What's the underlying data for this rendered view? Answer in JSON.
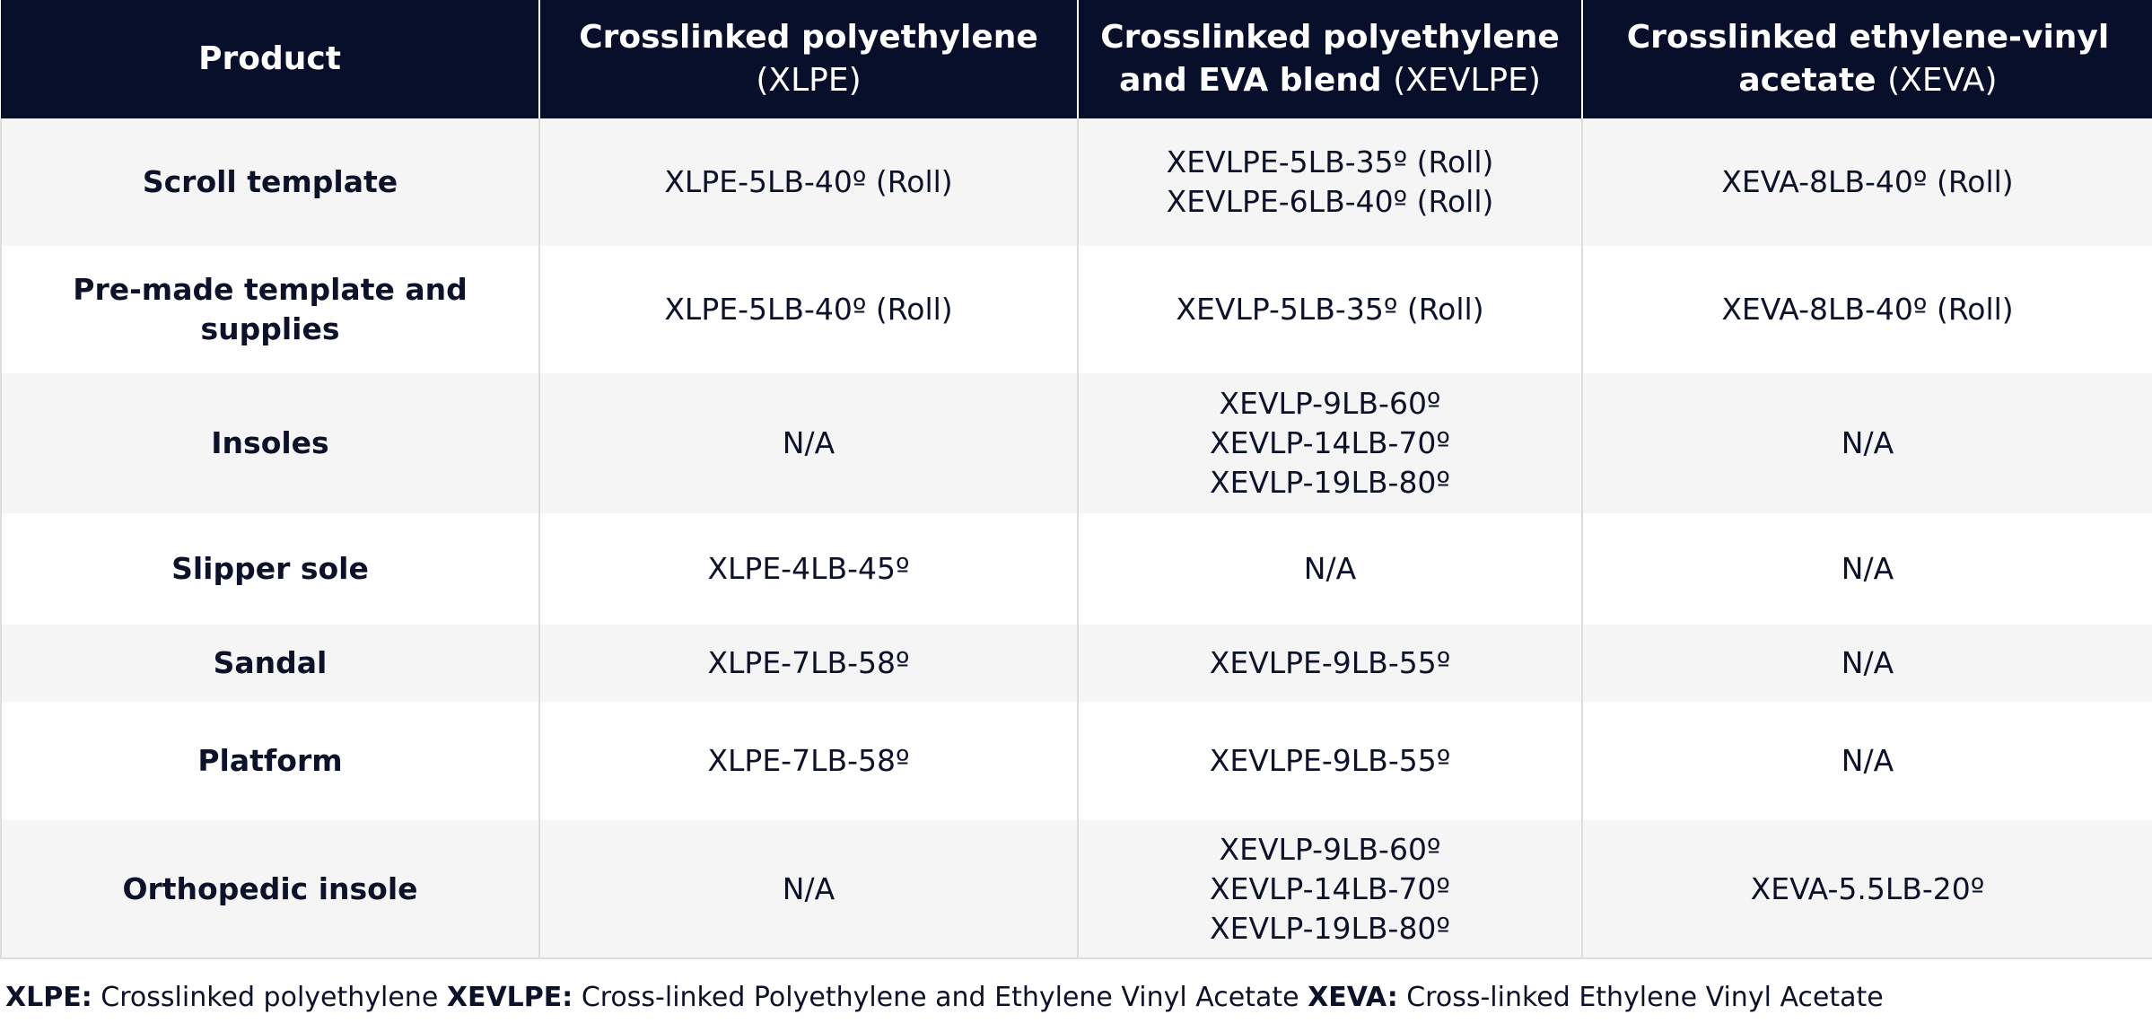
{
  "table": {
    "headers": [
      {
        "bold": "Product",
        "abbr": ""
      },
      {
        "bold": "Crosslinked polyethylene",
        "abbr": "(XLPE)"
      },
      {
        "bold": "Crosslinked polyethylene and EVA blend",
        "abbr": "(XEVLPE)"
      },
      {
        "bold": "Crosslinked ethylene-vinyl acetate",
        "abbr": "(XEVA)"
      }
    ],
    "rows": [
      {
        "product": "Scroll template",
        "xlpe": [
          "XLPE-5LB-40º (Roll)"
        ],
        "xevlpe": [
          "XEVLPE-5LB-35º (Roll)",
          "XEVLPE-6LB-40º (Roll)"
        ],
        "xeva": [
          "XEVA-8LB-40º (Roll)"
        ]
      },
      {
        "product": "Pre-made template and supplies",
        "xlpe": [
          "XLPE-5LB-40º (Roll)"
        ],
        "xevlpe": [
          "XEVLP-5LB-35º (Roll)"
        ],
        "xeva": [
          "XEVA-8LB-40º (Roll)"
        ]
      },
      {
        "product": "Insoles",
        "xlpe": [
          "N/A"
        ],
        "xevlpe": [
          "XEVLP-9LB-60º",
          "XEVLP-14LB-70º",
          "XEVLP-19LB-80º"
        ],
        "xeva": [
          "N/A"
        ]
      },
      {
        "product": "Slipper sole",
        "xlpe": [
          "XLPE-4LB-45º"
        ],
        "xevlpe": [
          "N/A"
        ],
        "xeva": [
          "N/A"
        ]
      },
      {
        "product": "Sandal",
        "xlpe": [
          "XLPE-7LB-58º"
        ],
        "xevlpe": [
          "XEVLPE-9LB-55º"
        ],
        "xeva": [
          "N/A"
        ]
      },
      {
        "product": "Platform",
        "xlpe": [
          "XLPE-7LB-58º"
        ],
        "xevlpe": [
          "XEVLPE-9LB-55º"
        ],
        "xeva": [
          "N/A"
        ]
      },
      {
        "product": "Orthopedic insole",
        "xlpe": [
          "N/A"
        ],
        "xevlpe": [
          "XEVLP-9LB-60º",
          "XEVLP-14LB-70º",
          "XEVLP-19LB-80º"
        ],
        "xeva": [
          "XEVA-5.5LB-20º"
        ]
      }
    ]
  },
  "legend": [
    {
      "term": "XLPE:",
      "definition": "Crosslinked polyethylene"
    },
    {
      "term": "XEVLPE:",
      "definition": "Cross-linked Polyethylene and Ethylene Vinyl Acetate"
    },
    {
      "term": "XEVA:",
      "definition": "Cross-linked Ethylene Vinyl Acetate"
    }
  ],
  "colors": {
    "header_background": "#070f2b",
    "header_text": "#ffffff",
    "body_text": "#0c1229",
    "stripe_row": "#f5f5f5",
    "plain_row": "#ffffff",
    "grid_line": "#dddddd"
  }
}
